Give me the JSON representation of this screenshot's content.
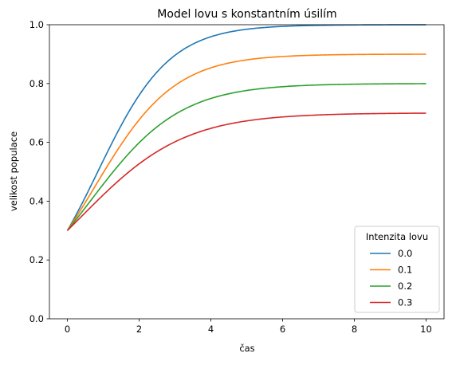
{
  "chart_data": {
    "type": "line",
    "title": "Model lovu s konstantním úsilím",
    "xlabel": "čas",
    "ylabel": "velikost populace",
    "xlim": [
      -0.5,
      10.5
    ],
    "ylim": [
      0.0,
      1.0
    ],
    "xticks": [
      "0",
      "2",
      "4",
      "6",
      "8",
      "10"
    ],
    "yticks": [
      "0.0",
      "0.2",
      "0.4",
      "0.6",
      "0.8",
      "1.0"
    ],
    "grid": false,
    "legend": {
      "title": "Intenzita lovu",
      "placement": "lower-right"
    },
    "model": {
      "growth_rate": 1.0,
      "initial_population": 0.3,
      "t_start": 0,
      "t_end": 10
    },
    "series": [
      {
        "name": "0.0",
        "harvest": 0.0,
        "color": "#1f77b4"
      },
      {
        "name": "0.1",
        "harvest": 0.1,
        "color": "#ff7f0e"
      },
      {
        "name": "0.2",
        "harvest": 0.2,
        "color": "#2ca02c"
      },
      {
        "name": "0.3",
        "harvest": 0.3,
        "color": "#d62728"
      }
    ]
  }
}
